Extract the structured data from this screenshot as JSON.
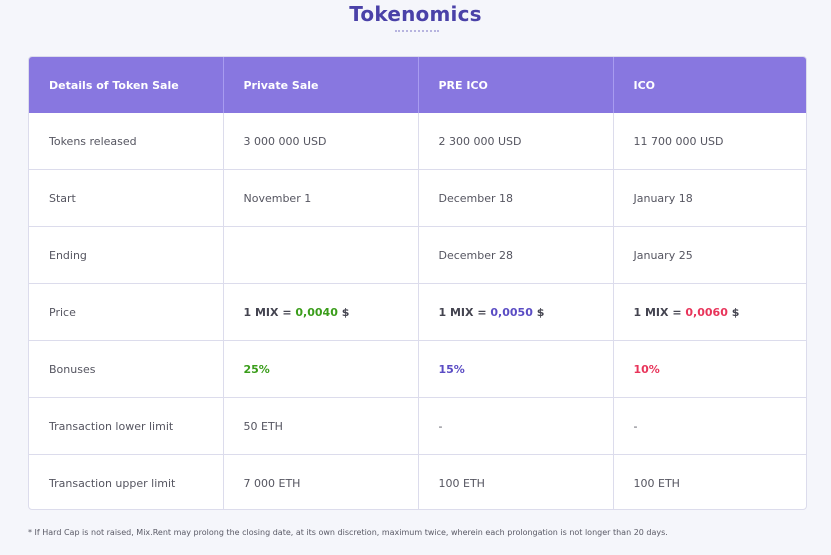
{
  "page": {
    "title": "Tokenomics"
  },
  "table": {
    "headers": [
      "Details of Token Sale",
      "Private Sale",
      "PRE ICO",
      "ICO"
    ],
    "rows": [
      {
        "label": "Tokens released",
        "private": "3 000 000 USD",
        "preico": "2 300 000 USD",
        "ico": "11 700 000 USD"
      },
      {
        "label": "Start",
        "private": "November 1",
        "preico": "December 18",
        "ico": "January 18"
      },
      {
        "label": "Ending",
        "private": "",
        "preico": "December 28",
        "ico": "January 25"
      },
      {
        "label": "Price",
        "private": {
          "prefix": "1 MIX",
          "eq": " = ",
          "value": "0,0040",
          "suffix": " $"
        },
        "preico": {
          "prefix": "1 MIX",
          "eq": " = ",
          "value": "0,0050",
          "suffix": " $"
        },
        "ico": {
          "prefix": "1 MIX",
          "eq": " = ",
          "value": "0,0060",
          "suffix": " $"
        }
      },
      {
        "label": "Bonuses",
        "private": "25%",
        "preico": "15%",
        "ico": "10%"
      },
      {
        "label": "Transaction lower limit",
        "private": "50 ETH",
        "preico": "-",
        "ico": "-"
      },
      {
        "label": "Transaction upper limit",
        "private": "7 000 ETH",
        "preico": "100 ETH",
        "ico": "100 ETH"
      }
    ]
  },
  "colors": {
    "header_bg": "#8877e0",
    "title": "#4a41a8",
    "private_accent": "#3a9d1a",
    "preico_accent": "#5a4cc4",
    "ico_accent": "#e8345a"
  },
  "footnote": "* If Hard Cap is not raised, Mix.Rent may prolong the closing date, at its own discretion, maximum twice, wherein each prolongation is not longer than 20 days."
}
